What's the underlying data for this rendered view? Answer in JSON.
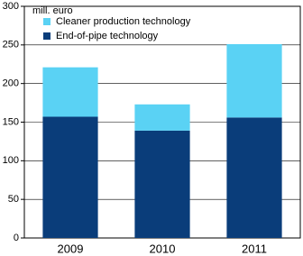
{
  "chart_data": {
    "type": "stacked-bar",
    "y_label": "mill. euro",
    "categories": [
      "2009",
      "2010",
      "2011"
    ],
    "series": [
      {
        "name": "End-of-pipe technology",
        "color": "#0a3d7a",
        "values": [
          157,
          139,
          156
        ]
      },
      {
        "name": "Cleaner production technology",
        "color": "#5ad2f4",
        "values": [
          64,
          34,
          95
        ]
      }
    ],
    "ylim": [
      0,
      300
    ],
    "yticks": [
      0,
      50,
      100,
      150,
      200,
      250,
      300
    ],
    "grid": true
  }
}
